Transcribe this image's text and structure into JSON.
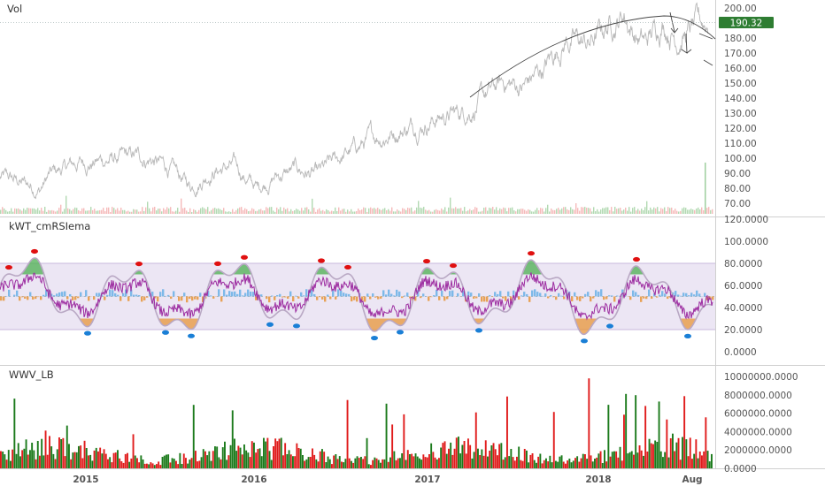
{
  "panes": {
    "price": {
      "title": "Vol",
      "current_price": "190.32",
      "price_badge_color": "#2e7d32"
    },
    "oscillator": {
      "title": "kWT_cmRSIema"
    },
    "volume": {
      "title": "WWV_LB"
    }
  },
  "axes": {
    "price_ticks": [
      "200.00",
      "190.00",
      "180.00",
      "170.00",
      "160.00",
      "150.00",
      "140.00",
      "130.00",
      "120.00",
      "110.00",
      "100.00",
      "90.00",
      "80.00",
      "70.00"
    ],
    "osc_ticks": [
      "120.0000",
      "100.0000",
      "80.0000",
      "60.0000",
      "40.0000",
      "20.0000",
      "0.0000"
    ],
    "vol_ticks": [
      "10000000.0000",
      "8000000.0000",
      "6000000.0000",
      "4000000.0000",
      "2000000.0000",
      "0.0000"
    ],
    "time_ticks": [
      "2015",
      "2016",
      "2017",
      "2018",
      "Aug"
    ]
  },
  "chart_data": [
    {
      "type": "line",
      "title": "Vol",
      "series": [
        {
          "values": []
        }
      ],
      "ylim": [
        65,
        205
      ],
      "annotations": [
        "trend arc",
        "arrows",
        "last price 190.32"
      ],
      "colors": {
        "price": "#b5b5b5",
        "badge": "#2e7d32"
      }
    },
    {
      "type": "line",
      "title": "kWT_cmRSIema",
      "ylim": [
        -5,
        122
      ],
      "band": [
        20,
        80
      ],
      "colors": {
        "wave": "#b9a8c4",
        "signal": "#9c2ca0",
        "overbought": "#4caf50",
        "oversold": "#e8953a",
        "histogram": "#6ab0e6",
        "high_dot": "#e01010",
        "low_dot": "#1a7fd6"
      }
    },
    {
      "type": "bar",
      "title": "WWV_LB",
      "ylim": [
        0,
        11000000
      ],
      "colors": {
        "up": "#1b7a1b",
        "down": "#e01b1b"
      }
    }
  ]
}
